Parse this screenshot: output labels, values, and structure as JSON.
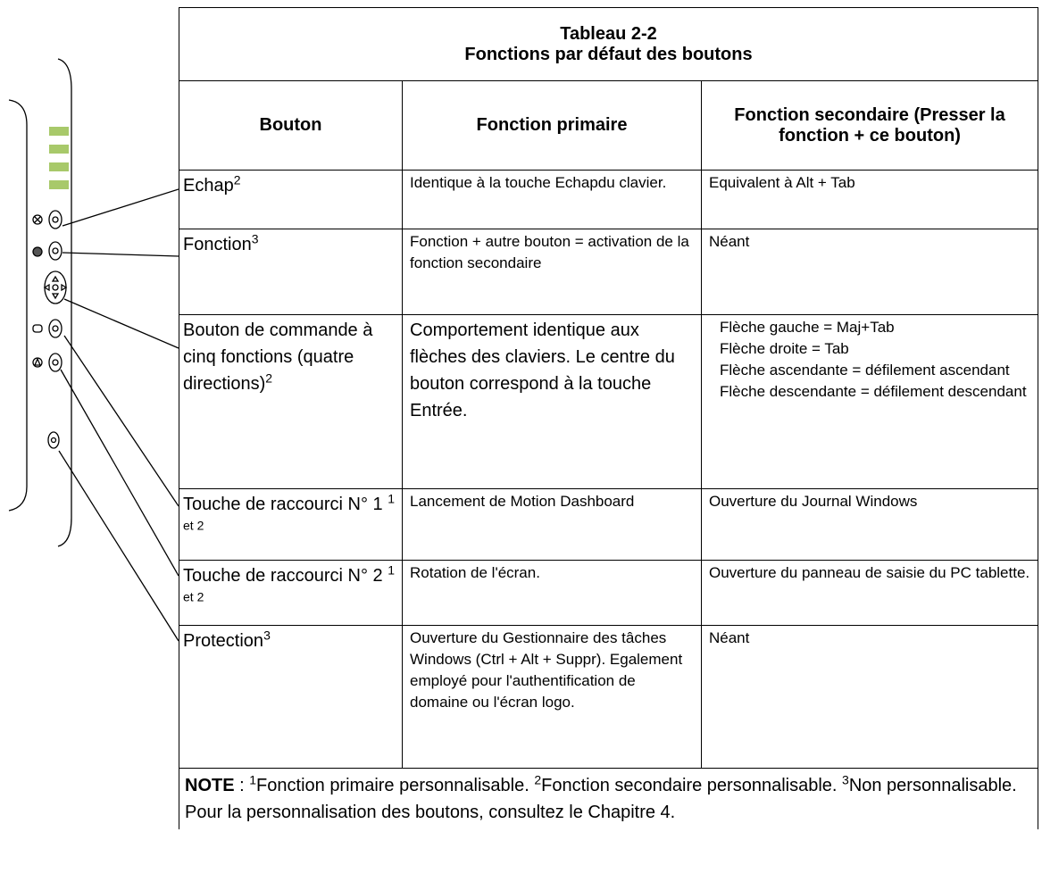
{
  "table": {
    "title": [
      "Tableau 2-2",
      "Fonctions par défaut des boutons"
    ],
    "headers": [
      "Bouton",
      "Fonction primaire",
      "Fonction secondaire (Presser la fonction + ce bouton)"
    ],
    "rows": [
      {
        "button": "Echap",
        "sup": "2",
        "primary": "Identique à la touche Echapdu clavier.",
        "secondary": [
          "Equivalent à Alt + Tab"
        ]
      },
      {
        "button": "Fonction",
        "sup": "3",
        "primary": "Fonction + autre bouton = activation de la fonction secondaire",
        "secondary": [
          "Néant"
        ]
      },
      {
        "button": "Bouton de commande à cinq fonctions (quatre directions)",
        "sup": "2",
        "primary": "Comportement identique aux flèches des claviers. Le centre du bouton correspond à la touche Entrée.",
        "secondary": [
          "Flèche gauche = Maj+Tab",
          "Flèche droite = Tab",
          "Flèche ascendante = défilement ascendant",
          "Flèche descendante = défilement descendant"
        ]
      },
      {
        "button": "Touche de raccourci N° 1",
        "sup": "1 et 2",
        "primary": "Lancement de Motion Dashboard",
        "secondary": [
          "Ouverture du Journal Windows"
        ]
      },
      {
        "button": "Touche de raccourci N° 2",
        "sup": "1 et 2",
        "primary": "Rotation de l'écran.",
        "secondary": [
          "Ouverture du panneau de saisie du PC tablette."
        ]
      },
      {
        "button": "Protection",
        "sup": "3",
        "primary": "Ouverture du Gestionnaire des tâches Windows (Ctrl + Alt + Suppr). Egalement employé pour l'authentification de domaine ou l'écran logo.",
        "secondary": [
          "Néant"
        ]
      }
    ],
    "note": {
      "label": "NOTE",
      "separator": ":",
      "items": [
        {
          "sup": "1",
          "text": "Fonction primaire personnalisable."
        },
        {
          "sup": "2",
          "text": "Fonction secondaire personnalisable."
        },
        {
          "sup": "3",
          "text": "Non personnalisable. Pour la personnalisation des boutons, consultez le Chapitre 4."
        }
      ]
    }
  }
}
